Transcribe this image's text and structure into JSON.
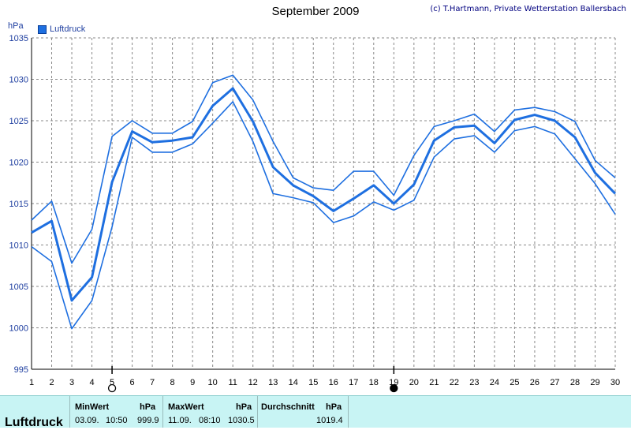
{
  "header": {
    "title": "September 2009",
    "copyright": "(c) T.Hartmann, Private Wetterstation Ballersbach"
  },
  "chart_data": {
    "type": "line",
    "ylabel": "hPa",
    "ylim": [
      995,
      1035
    ],
    "yticks": [
      995,
      1000,
      1005,
      1010,
      1015,
      1020,
      1025,
      1030,
      1035
    ],
    "xlim": [
      1,
      30
    ],
    "x": [
      1,
      2,
      3,
      4,
      5,
      6,
      7,
      8,
      9,
      10,
      11,
      12,
      13,
      14,
      15,
      16,
      17,
      18,
      19,
      20,
      21,
      22,
      23,
      24,
      25,
      26,
      27,
      28,
      29,
      30
    ],
    "legend": [
      "Luftdruck"
    ],
    "legend_position": "top-left",
    "grid": true,
    "series": [
      {
        "name": "Luftdruck",
        "role": "mean",
        "values": [
          1011.5,
          1012.9,
          1003.3,
          1006.1,
          1017.6,
          1023.7,
          1022.4,
          1022.6,
          1023.0,
          1026.8,
          1028.9,
          1024.9,
          1019.4,
          1017.2,
          1015.9,
          1014.1,
          1015.6,
          1017.2,
          1015.0,
          1017.3,
          1022.6,
          1024.2,
          1024.4,
          1022.3,
          1025.1,
          1025.7,
          1025.0,
          1023.0,
          1018.7,
          1016.2
        ]
      },
      {
        "name": "Luftdruck",
        "role": "max",
        "values": [
          1013.0,
          1015.3,
          1007.8,
          1011.9,
          1023.1,
          1025.0,
          1023.5,
          1023.5,
          1024.9,
          1029.6,
          1030.5,
          1027.5,
          1022.5,
          1018.1,
          1016.9,
          1016.6,
          1018.9,
          1018.9,
          1016.0,
          1020.8,
          1024.3,
          1025.0,
          1025.8,
          1023.7,
          1026.3,
          1026.6,
          1026.1,
          1024.9,
          1020.2,
          1018.1
        ]
      },
      {
        "name": "Luftdruck",
        "role": "min",
        "values": [
          1009.8,
          1008.0,
          999.9,
          1003.3,
          1012.2,
          1023.0,
          1021.2,
          1021.2,
          1022.2,
          1024.7,
          1027.3,
          1022.5,
          1016.2,
          1015.7,
          1015.1,
          1012.7,
          1013.5,
          1015.2,
          1014.2,
          1015.4,
          1020.6,
          1022.8,
          1023.2,
          1021.2,
          1023.8,
          1024.3,
          1023.4,
          1020.4,
          1017.4,
          1013.7
        ]
      }
    ],
    "markers": [
      {
        "day": 5,
        "symbol": "hollow-circle"
      },
      {
        "day": 19,
        "symbol": "filled-circle"
      }
    ],
    "colors": {
      "mean": "#1e6fe0",
      "band": "#1e6fe0",
      "grid": "#888888",
      "axis": "#1f3fa0"
    }
  },
  "stats": {
    "row_label": "Luftdruck",
    "min": {
      "header": "MinWert",
      "unit": "hPa",
      "date": "03.09.",
      "time": "10:50",
      "value": "999.9"
    },
    "max": {
      "header": "MaxWert",
      "unit": "hPa",
      "date": "11.09.",
      "time": "08:10",
      "value": "1030.5"
    },
    "avg": {
      "header": "Durchschnitt",
      "unit": "hPa",
      "value": "1019.4"
    }
  }
}
